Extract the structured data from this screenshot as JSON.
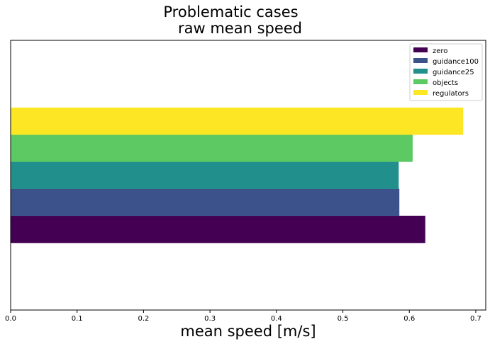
{
  "chart_data": {
    "type": "bar",
    "orientation": "horizontal",
    "title": "Problematic cases",
    "subtitle": "raw mean speed",
    "xlabel": "mean speed [m/s]",
    "ylabel": "",
    "xlim": [
      0.0,
      0.715
    ],
    "xticks": [
      "0.0",
      "0.1",
      "0.2",
      "0.3",
      "0.4",
      "0.5",
      "0.6",
      "0.7"
    ],
    "grid": false,
    "legend_position": "top-right",
    "series": [
      {
        "name": "zero",
        "value": 0.624,
        "color": "#440154"
      },
      {
        "name": "guidance100",
        "value": 0.585,
        "color": "#3b528b"
      },
      {
        "name": "guidance25",
        "value": 0.584,
        "color": "#21908d"
      },
      {
        "name": "objects",
        "value": 0.605,
        "color": "#5dc963"
      },
      {
        "name": "regulators",
        "value": 0.681,
        "color": "#fde725"
      }
    ]
  }
}
